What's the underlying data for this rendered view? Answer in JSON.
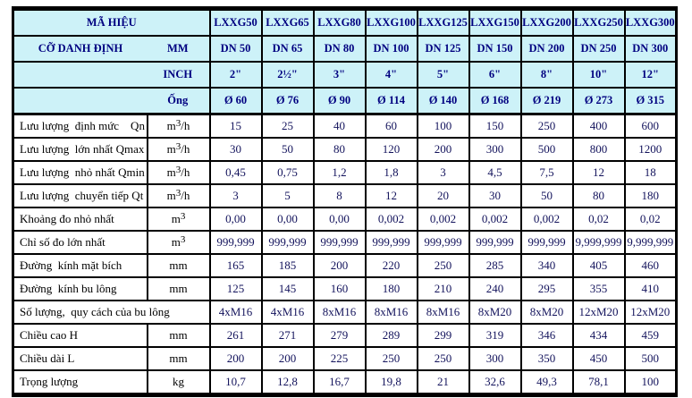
{
  "colors": {
    "header_bg": "#cdf2f8",
    "header_text": "#000080",
    "value_text": "#13135c",
    "label_text": "#000000",
    "grid": "#000000",
    "page_bg": "#ffffff"
  },
  "header": {
    "rows": [
      {
        "left": "MÃ HIỆU",
        "unit": "",
        "cells": [
          "LXXG50",
          "LXXG65",
          "LXXG80",
          "LXXG100",
          "LXXG125",
          "LXXG150",
          "LXXG200",
          "LXXG250",
          "LXXG300"
        ]
      },
      {
        "left": "CỠ DANH ĐỊNH",
        "unit": "MM",
        "cells": [
          "DN 50",
          "DN 65",
          "DN 80",
          "DN 100",
          "DN 125",
          "DN 150",
          "DN 200",
          "DN 250",
          "DN 300"
        ]
      },
      {
        "left": "",
        "unit": "INCH",
        "cells": [
          "2\"",
          "2½\"",
          "3\"",
          "4\"",
          "5\"",
          "6\"",
          "8\"",
          "10\"",
          "12\""
        ]
      },
      {
        "left": "",
        "unit": "Ống",
        "cells": [
          "Ø 60",
          "Ø 76",
          "Ø 90",
          "Ø 114",
          "Ø 140",
          "Ø 168",
          "Ø 219",
          "Ø 273",
          "Ø 315"
        ]
      }
    ]
  },
  "rows": [
    {
      "label": "Lưu lượng  định mức    Qn",
      "unit": {
        "base": "m",
        "sup": "3",
        "rest": "/h"
      },
      "values": [
        "15",
        "25",
        "40",
        "60",
        "100",
        "150",
        "250",
        "400",
        "600"
      ]
    },
    {
      "label": "Lưu lượng  lớn nhất Qmax",
      "unit": {
        "base": "m",
        "sup": "3",
        "rest": "/h"
      },
      "values": [
        "30",
        "50",
        "80",
        "120",
        "200",
        "300",
        "500",
        "800",
        "1200"
      ]
    },
    {
      "label": "Lưu lượng  nhỏ nhất Qmin",
      "unit": {
        "base": "m",
        "sup": "3",
        "rest": "/h"
      },
      "values": [
        "0,45",
        "0,75",
        "1,2",
        "1,8",
        "3",
        "4,5",
        "7,5",
        "12",
        "18"
      ]
    },
    {
      "label": "Lưu lượng  chuyển tiếp Qt",
      "unit": {
        "base": "m",
        "sup": "3",
        "rest": "/h"
      },
      "values": [
        "3",
        "5",
        "8",
        "12",
        "20",
        "30",
        "50",
        "80",
        "180"
      ]
    },
    {
      "label": "Khoảng đo nhỏ nhất",
      "unit": {
        "base": "m",
        "sup": "3",
        "rest": ""
      },
      "values": [
        "0,00",
        "0,00",
        "0,00",
        "0,002",
        "0,002",
        "0,002",
        "0,002",
        "0,02",
        "0,02"
      ]
    },
    {
      "label": "Chỉ số đo lớn nhất",
      "unit": {
        "base": "m",
        "sup": "3",
        "rest": ""
      },
      "values": [
        "999,999",
        "999,999",
        "999,999",
        "999,999",
        "999,999",
        "999,999",
        "999,999",
        "9,999,999",
        "9,999,999"
      ]
    },
    {
      "label": "Đường  kính mặt bích",
      "unit": {
        "base": "mm",
        "sup": "",
        "rest": ""
      },
      "values": [
        "165",
        "185",
        "200",
        "220",
        "250",
        "285",
        "340",
        "405",
        "460"
      ]
    },
    {
      "label": "Đường  kính bu lông",
      "unit": {
        "base": "mm",
        "sup": "",
        "rest": ""
      },
      "values": [
        "125",
        "145",
        "160",
        "180",
        "210",
        "240",
        "295",
        "355",
        "410"
      ]
    },
    {
      "label": "Số lượng,  quy cách của bu lông",
      "unit": null,
      "values": [
        "4xM16",
        "4xM16",
        "8xM16",
        "8xM16",
        "8xM16",
        "8xM20",
        "8xM20",
        "12xM20",
        "12xM20"
      ]
    },
    {
      "label": "Chiều cao H",
      "unit": {
        "base": "mm",
        "sup": "",
        "rest": ""
      },
      "values": [
        "261",
        "271",
        "279",
        "289",
        "299",
        "319",
        "346",
        "434",
        "459"
      ]
    },
    {
      "label": "Chiều dài L",
      "unit": {
        "base": "mm",
        "sup": "",
        "rest": ""
      },
      "values": [
        "200",
        "200",
        "225",
        "250",
        "250",
        "300",
        "350",
        "450",
        "500"
      ]
    },
    {
      "label": "Trọng lượng",
      "unit": {
        "base": "kg",
        "sup": "",
        "rest": ""
      },
      "values": [
        "10,7",
        "12,8",
        "16,7",
        "19,8",
        "21",
        "32,6",
        "49,3",
        "78,1",
        "100"
      ]
    }
  ]
}
